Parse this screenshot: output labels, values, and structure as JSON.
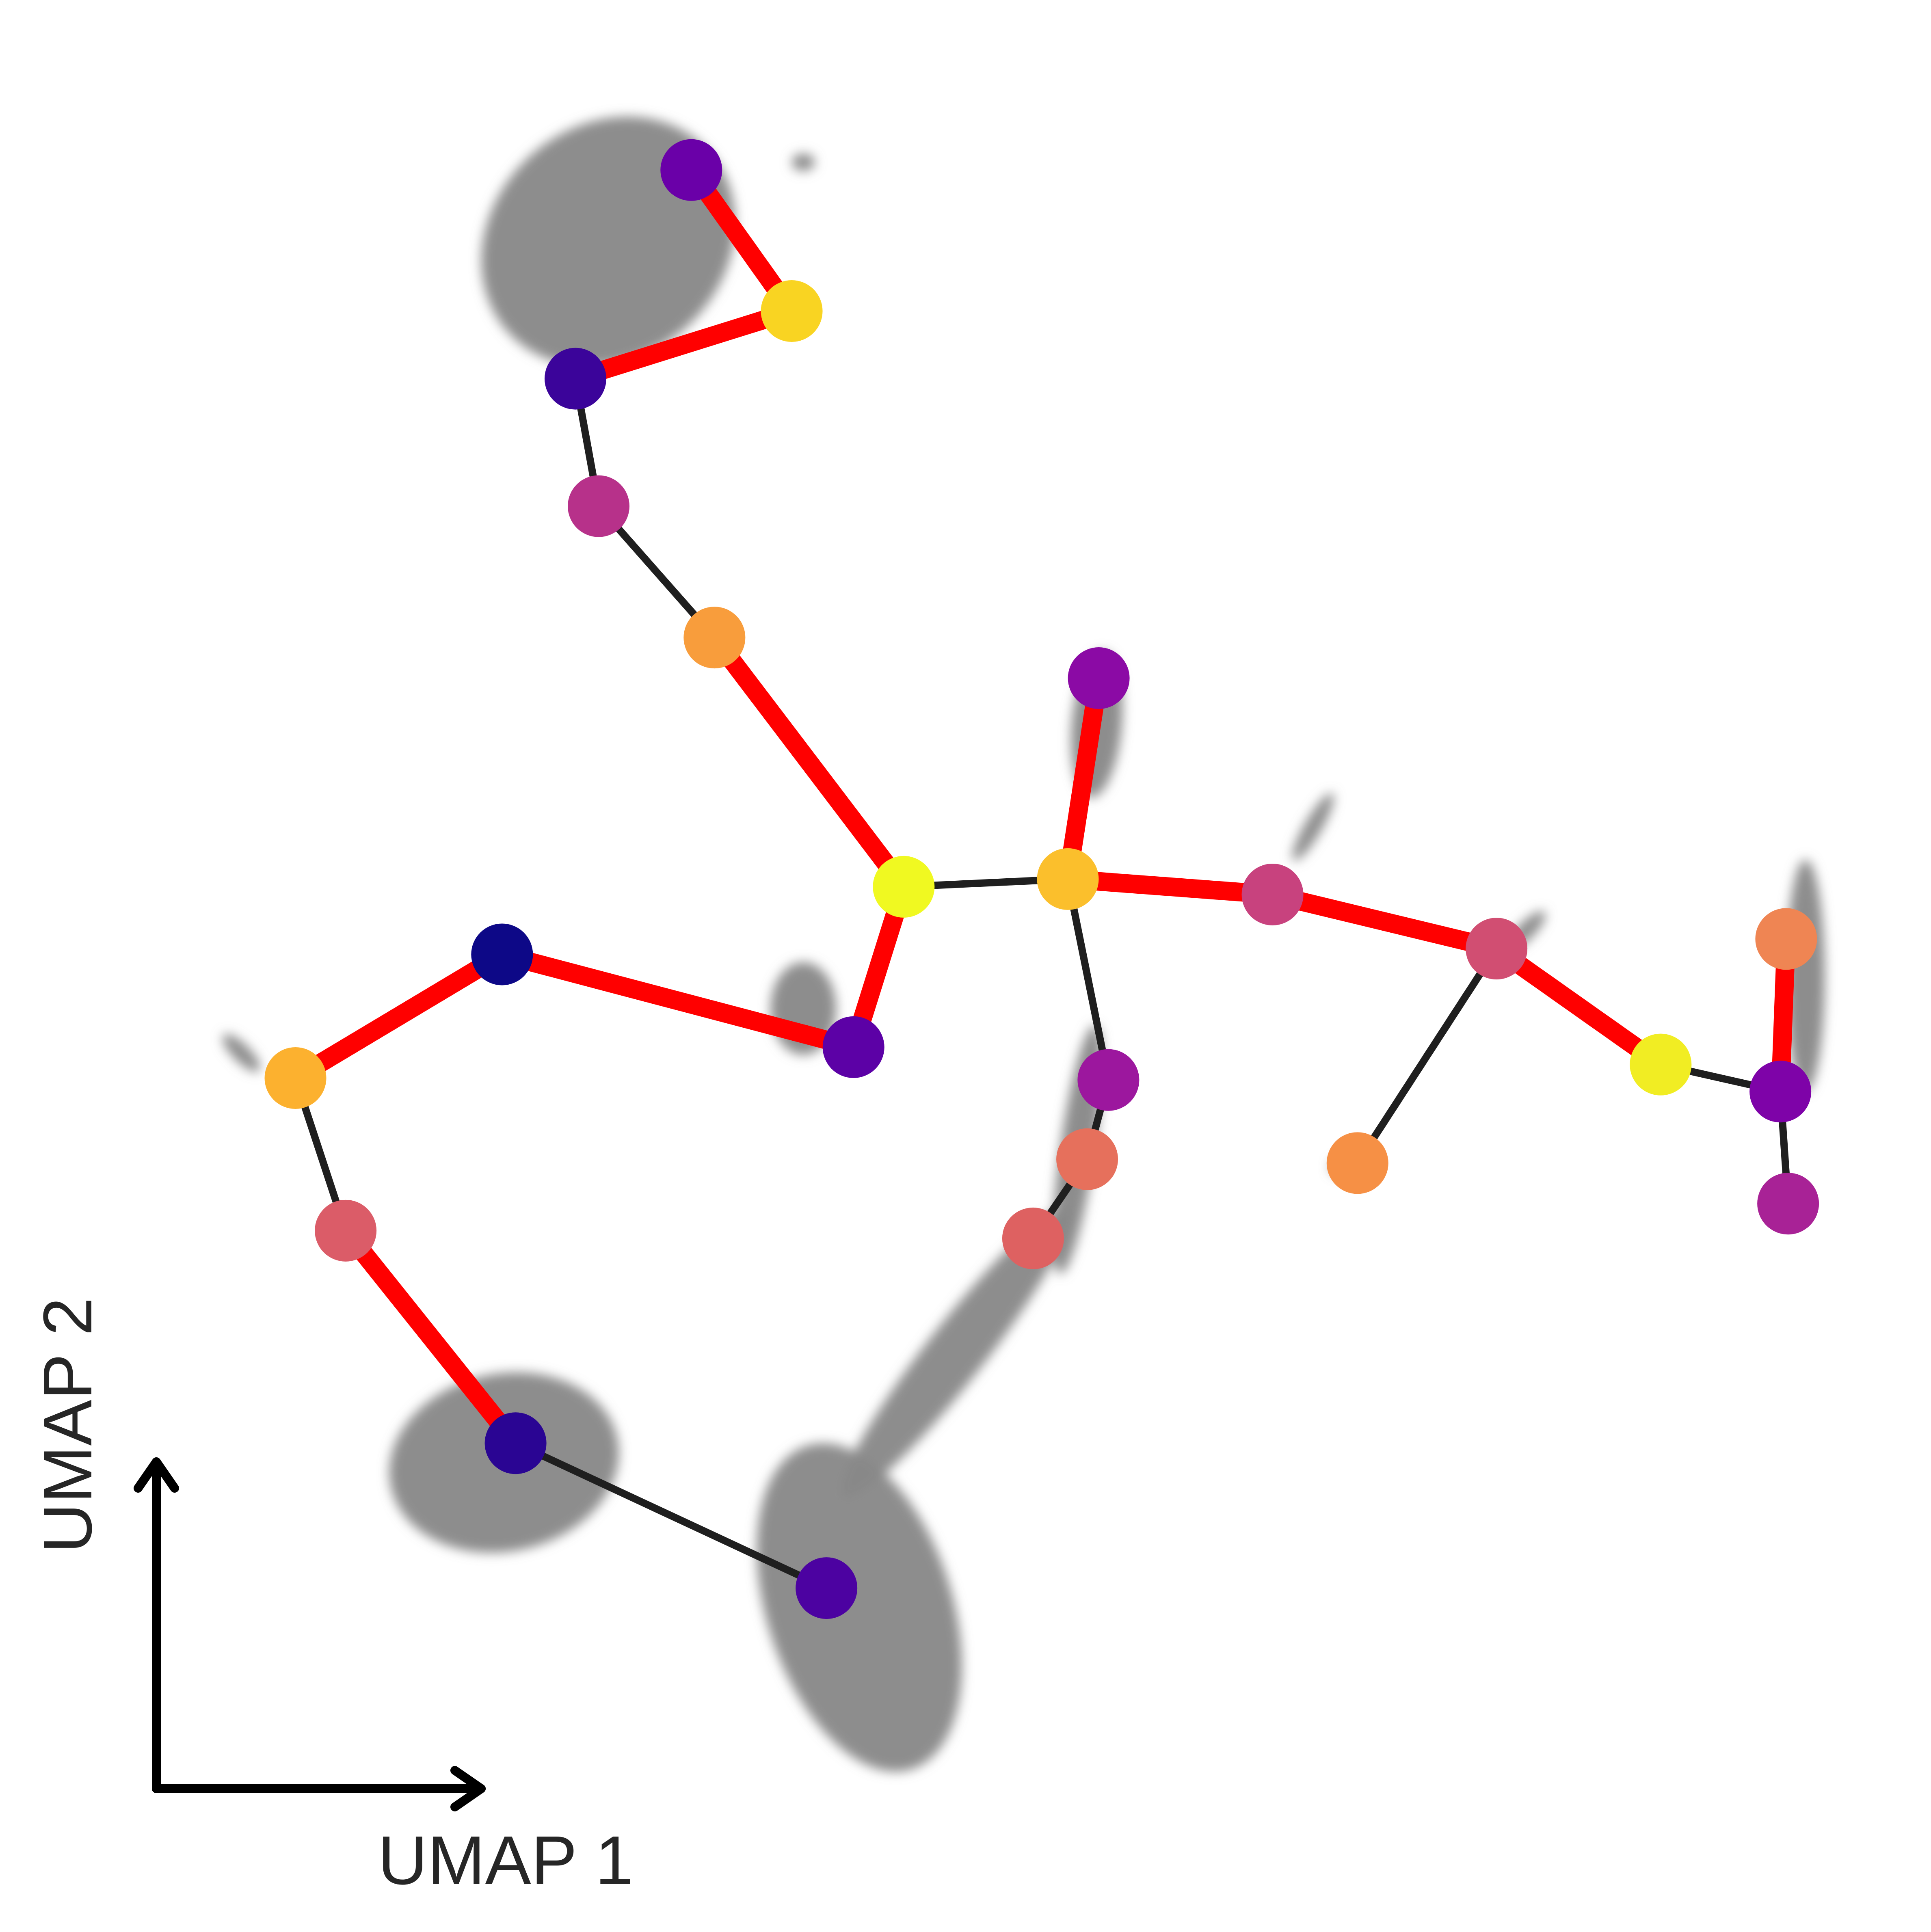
{
  "chart_data": {
    "type": "scatter",
    "subtype": "umap-trajectory-graph",
    "xlabel": "UMAP 1",
    "ylabel": "UMAP 2",
    "xlim": [
      0,
      100
    ],
    "ylim": [
      0,
      100
    ],
    "grid": false,
    "legend": "none",
    "background_cells": {
      "color": "#888888",
      "clusters": [
        {
          "id": "top-left",
          "cx": 31.5,
          "cy": 87.5,
          "rx": 7.0,
          "ry": 6.0,
          "angle": -42
        },
        {
          "id": "center-small",
          "cx": 41.6,
          "cy": 47.8,
          "rx": 1.7,
          "ry": 2.4,
          "angle": 0
        },
        {
          "id": "bottom-left",
          "cx": 26.1,
          "cy": 24.3,
          "rx": 6.0,
          "ry": 4.6,
          "angle": -12
        },
        {
          "id": "bottom-center",
          "cx": 44.5,
          "cy": 16.8,
          "rx": 4.8,
          "ry": 8.8,
          "angle": -18
        },
        {
          "id": "stream-lower",
          "cx": 49.5,
          "cy": 30.0,
          "rx": 1.5,
          "ry": 9.5,
          "angle": 38
        },
        {
          "id": "stream-upper",
          "cx": 55.8,
          "cy": 40.5,
          "rx": 0.9,
          "ry": 6.5,
          "angle": 8
        },
        {
          "id": "upper-right-small",
          "cx": 56.8,
          "cy": 62.5,
          "rx": 1.3,
          "ry": 3.8,
          "angle": 5
        },
        {
          "id": "right-streak-1",
          "cx": 68.0,
          "cy": 57.2,
          "rx": 0.45,
          "ry": 2.0,
          "angle": 30
        },
        {
          "id": "right-streak-2",
          "cx": 79.0,
          "cy": 51.8,
          "rx": 0.45,
          "ry": 1.4,
          "angle": 45
        },
        {
          "id": "right-streak-3",
          "cx": 93.5,
          "cy": 49.5,
          "rx": 1.0,
          "ry": 6.0,
          "angle": 0
        },
        {
          "id": "left-streak",
          "cx": 12.5,
          "cy": 45.5,
          "rx": 0.45,
          "ry": 1.3,
          "angle": -45
        },
        {
          "id": "top-speck",
          "cx": 41.6,
          "cy": 91.6,
          "rx": 0.6,
          "ry": 0.45,
          "angle": 0
        },
        {
          "id": "bottom-right-speck",
          "cx": 69.5,
          "cy": 39.6,
          "rx": 0.6,
          "ry": 0.45,
          "angle": 0
        }
      ]
    },
    "nodes": [
      {
        "id": 0,
        "x": 35.8,
        "y": 91.2,
        "color": "#6a00a8"
      },
      {
        "id": 1,
        "x": 41.0,
        "y": 83.9,
        "color": "#f9d422"
      },
      {
        "id": 2,
        "x": 29.8,
        "y": 80.4,
        "color": "#3b049a"
      },
      {
        "id": 3,
        "x": 31.0,
        "y": 73.8,
        "color": "#b7318a"
      },
      {
        "id": 4,
        "x": 37.0,
        "y": 67.0,
        "color": "#f89d3c"
      },
      {
        "id": 5,
        "x": 46.8,
        "y": 54.1,
        "color": "#f0f921"
      },
      {
        "id": 6,
        "x": 55.3,
        "y": 54.5,
        "color": "#fbbf2c"
      },
      {
        "id": 7,
        "x": 56.9,
        "y": 64.9,
        "color": "#8b0aa5"
      },
      {
        "id": 8,
        "x": 65.9,
        "y": 53.7,
        "color": "#c8427e"
      },
      {
        "id": 9,
        "x": 77.5,
        "y": 50.9,
        "color": "#d14e72"
      },
      {
        "id": 10,
        "x": 86.0,
        "y": 44.9,
        "color": "#f1ed23"
      },
      {
        "id": 11,
        "x": 92.2,
        "y": 43.5,
        "color": "#7e03a8"
      },
      {
        "id": 12,
        "x": 92.5,
        "y": 51.4,
        "color": "#ef8553"
      },
      {
        "id": 13,
        "x": 92.6,
        "y": 37.7,
        "color": "#a82296"
      },
      {
        "id": 14,
        "x": 70.3,
        "y": 39.8,
        "color": "#f69045"
      },
      {
        "id": 15,
        "x": 57.4,
        "y": 44.1,
        "color": "#9c179e"
      },
      {
        "id": 16,
        "x": 56.3,
        "y": 40.0,
        "color": "#e6705c"
      },
      {
        "id": 17,
        "x": 53.5,
        "y": 35.9,
        "color": "#de6161"
      },
      {
        "id": 18,
        "x": 44.2,
        "y": 45.8,
        "color": "#5c01a6"
      },
      {
        "id": 19,
        "x": 26.0,
        "y": 50.6,
        "color": "#0d0887"
      },
      {
        "id": 20,
        "x": 15.3,
        "y": 44.2,
        "color": "#fcb12f"
      },
      {
        "id": 21,
        "x": 17.9,
        "y": 36.3,
        "color": "#db5c68"
      },
      {
        "id": 22,
        "x": 26.7,
        "y": 25.3,
        "color": "#2a0593"
      },
      {
        "id": 23,
        "x": 42.8,
        "y": 17.8,
        "color": "#4c02a1"
      }
    ],
    "edges": [
      {
        "from": 0,
        "to": 1,
        "highlight": true
      },
      {
        "from": 1,
        "to": 2,
        "highlight": true
      },
      {
        "from": 2,
        "to": 3,
        "highlight": false
      },
      {
        "from": 3,
        "to": 4,
        "highlight": false
      },
      {
        "from": 4,
        "to": 5,
        "highlight": true
      },
      {
        "from": 5,
        "to": 6,
        "highlight": false
      },
      {
        "from": 6,
        "to": 7,
        "highlight": true
      },
      {
        "from": 6,
        "to": 8,
        "highlight": true
      },
      {
        "from": 8,
        "to": 9,
        "highlight": true
      },
      {
        "from": 9,
        "to": 10,
        "highlight": true
      },
      {
        "from": 10,
        "to": 11,
        "highlight": false
      },
      {
        "from": 11,
        "to": 12,
        "highlight": true
      },
      {
        "from": 11,
        "to": 13,
        "highlight": false
      },
      {
        "from": 9,
        "to": 14,
        "highlight": false
      },
      {
        "from": 6,
        "to": 15,
        "highlight": false
      },
      {
        "from": 15,
        "to": 16,
        "highlight": false
      },
      {
        "from": 16,
        "to": 17,
        "highlight": false
      },
      {
        "from": 5,
        "to": 18,
        "highlight": true
      },
      {
        "from": 18,
        "to": 19,
        "highlight": true
      },
      {
        "from": 19,
        "to": 20,
        "highlight": true
      },
      {
        "from": 20,
        "to": 21,
        "highlight": false
      },
      {
        "from": 21,
        "to": 22,
        "highlight": true
      },
      {
        "from": 22,
        "to": 23,
        "highlight": false
      }
    ],
    "edge_colors": {
      "highlight": "#ff0000",
      "normal": "#1f1f1f"
    },
    "axis_indicator_color": "#000000"
  }
}
